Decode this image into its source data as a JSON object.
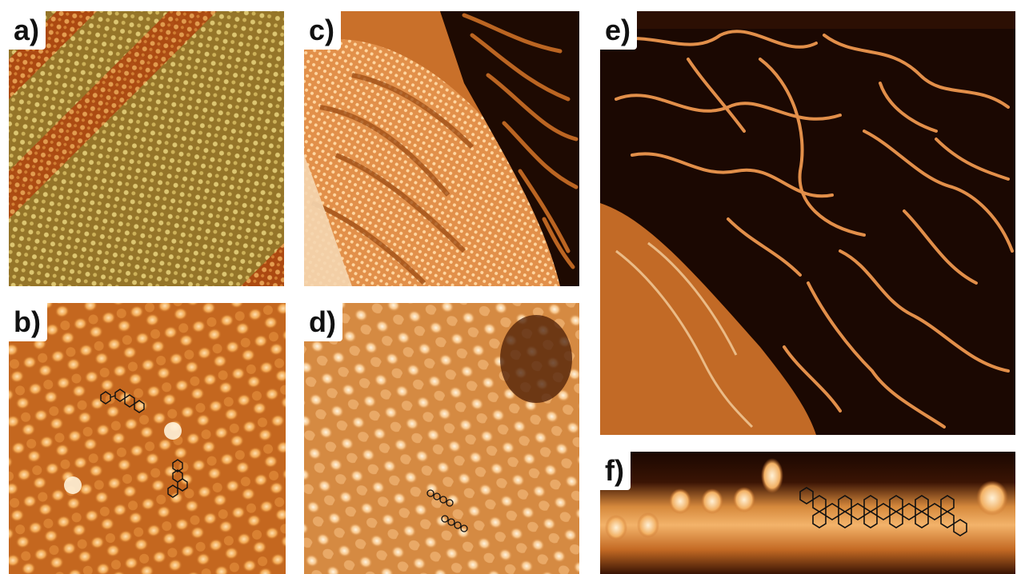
{
  "figure": {
    "panels": [
      {
        "id": "a",
        "label": "a)"
      },
      {
        "id": "b",
        "label": "b)"
      },
      {
        "id": "c",
        "label": "c)"
      },
      {
        "id": "d",
        "label": "d)"
      },
      {
        "id": "e",
        "label": "e)"
      },
      {
        "id": "f",
        "label": "f)"
      }
    ]
  },
  "colors": {
    "stm_dark": "#2a0c02",
    "stm_mid": "#b8561a",
    "stm_bright": "#ffd7a3",
    "stm_green": "#b8a048",
    "molecule_line": "#111111"
  }
}
